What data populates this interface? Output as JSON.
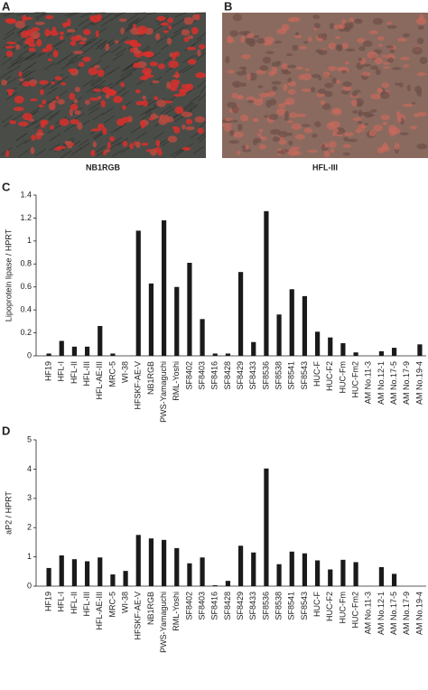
{
  "panel_labels": [
    "A",
    "B",
    "C",
    "D"
  ],
  "image_captions": [
    "NB1RGB",
    "HFL-III"
  ],
  "chart_data": [
    {
      "type": "bar",
      "ylabel": "Lipoprotein lipase / HPRT",
      "color": "#1a1a1a",
      "categories": [
        "HF19",
        "HFL-I",
        "HFL-II",
        "HFL-III",
        "HFL-AE-III",
        "MRC-5",
        "WI-38",
        "HFSKF-AE-V",
        "NB1RGB",
        "PWS-Yamaguchi",
        "RML-Yoshi",
        "SF8402",
        "SF8403",
        "SF8416",
        "SF8428",
        "SF8429",
        "SF8433",
        "SF8536",
        "SF8538",
        "SF8541",
        "SF8543",
        "HUC-F",
        "HUC-F2",
        "HUC-Fm",
        "HUC-Fm2",
        "AM No.11-3",
        "AM No.12-1",
        "AM No.17-5",
        "AM No.17-9",
        "AM No.19-4"
      ],
      "values": [
        0.02,
        0.13,
        0.08,
        0.08,
        0.26,
        0.02,
        0,
        1.09,
        0.63,
        1.18,
        0.6,
        0.81,
        0.32,
        0.02,
        0.02,
        0.73,
        0.12,
        1.26,
        0.36,
        0.58,
        0.52,
        0.21,
        0.16,
        0.11,
        0.03,
        0,
        0.04,
        0.07,
        0,
        0.1
      ],
      "ylim": [
        0,
        1.4
      ],
      "yticks": [
        0,
        0.2,
        0.4,
        0.6,
        0.8,
        1,
        1.2,
        1.4
      ]
    },
    {
      "type": "bar",
      "ylabel": "aP2 / HPRT",
      "color": "#1a1a1a",
      "categories": [
        "HF19",
        "HFL-I",
        "HFL-II",
        "HFL-III",
        "HFL-AE-III",
        "MRC-5",
        "WI-38",
        "HFSKF-AE-V",
        "NB1RGB",
        "PWS-Yamaguchi",
        "RML-Yoshi",
        "SF8402",
        "SF8403",
        "SF8416",
        "SF8428",
        "SF8429",
        "SF8433",
        "SF8536",
        "SF8538",
        "SF8541",
        "SF8543",
        "HUC-F",
        "HUC-F2",
        "HUC-Fm",
        "HUC-Fm2",
        "AM No.11-3",
        "AM No.12-1",
        "AM No.17-5",
        "AM No.17-9",
        "AM No.19-4"
      ],
      "values": [
        0.62,
        1.05,
        0.92,
        0.85,
        0.98,
        0.4,
        0.52,
        1.75,
        1.63,
        1.58,
        1.3,
        0.78,
        0.98,
        0.03,
        0.18,
        1.38,
        1.15,
        4.02,
        0.75,
        1.18,
        1.12,
        0.88,
        0.57,
        0.9,
        0.82,
        0,
        0.65,
        0.42,
        0,
        0
      ],
      "ylim": [
        0,
        5
      ],
      "yticks": [
        0,
        1,
        2,
        3,
        4,
        5
      ]
    }
  ]
}
